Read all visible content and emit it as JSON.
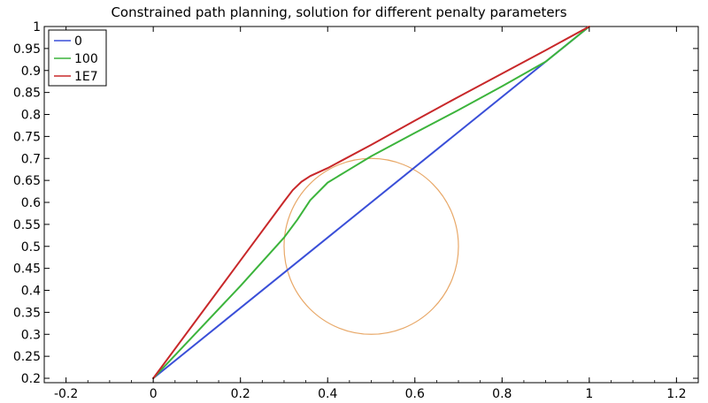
{
  "chart_data": {
    "type": "line",
    "title": "Constrained path planning, solution for different penalty parameters",
    "xlabel": "",
    "ylabel": "",
    "xlim": [
      -0.25,
      1.25
    ],
    "ylim": [
      0.19,
      1.0
    ],
    "xticks": [
      -0.2,
      0,
      0.2,
      0.4,
      0.6,
      0.8,
      1,
      1.2
    ],
    "xtick_labels": [
      "-0.2",
      "0",
      "0.2",
      "0.4",
      "0.6",
      "0.8",
      "1",
      "1.2"
    ],
    "yticks": [
      0.2,
      0.25,
      0.3,
      0.35,
      0.4,
      0.45,
      0.5,
      0.55,
      0.6,
      0.65,
      0.7,
      0.75,
      0.8,
      0.85,
      0.9,
      0.95,
      1
    ],
    "ytick_labels": [
      "0.2",
      "0.25",
      "0.3",
      "0.35",
      "0.4",
      "0.45",
      "0.5",
      "0.55",
      "0.6",
      "0.65",
      "0.7",
      "0.75",
      "0.8",
      "0.85",
      "0.9",
      "0.95",
      "1"
    ],
    "grid": false,
    "legend_position": "top-left",
    "series": [
      {
        "name": "0",
        "color": "#3a4fd8",
        "x": [
          0,
          1
        ],
        "y": [
          0.2,
          1
        ]
      },
      {
        "name": "100",
        "color": "#3cb43c",
        "x": [
          0,
          0.1,
          0.2,
          0.3,
          0.33,
          0.36,
          0.4,
          0.45,
          0.5,
          0.6,
          0.7,
          0.8,
          0.9,
          1
        ],
        "y": [
          0.2,
          0.305,
          0.41,
          0.52,
          0.56,
          0.605,
          0.645,
          0.675,
          0.705,
          0.758,
          0.81,
          0.864,
          0.92,
          1
        ]
      },
      {
        "name": "1E7",
        "color": "#c8282a",
        "x": [
          0,
          0.1,
          0.2,
          0.3,
          0.32,
          0.34,
          0.36,
          0.38,
          0.4,
          0.5,
          0.6,
          0.7,
          0.8,
          0.9,
          1
        ],
        "y": [
          0.2,
          0.334,
          0.468,
          0.602,
          0.628,
          0.647,
          0.66,
          0.669,
          0.678,
          0.731,
          0.786,
          0.84,
          0.893,
          0.946,
          1
        ]
      }
    ],
    "annotations": [
      {
        "shape": "circle",
        "center": [
          0.5,
          0.5
        ],
        "radius": 0.2,
        "color": "#e8a868"
      }
    ]
  }
}
